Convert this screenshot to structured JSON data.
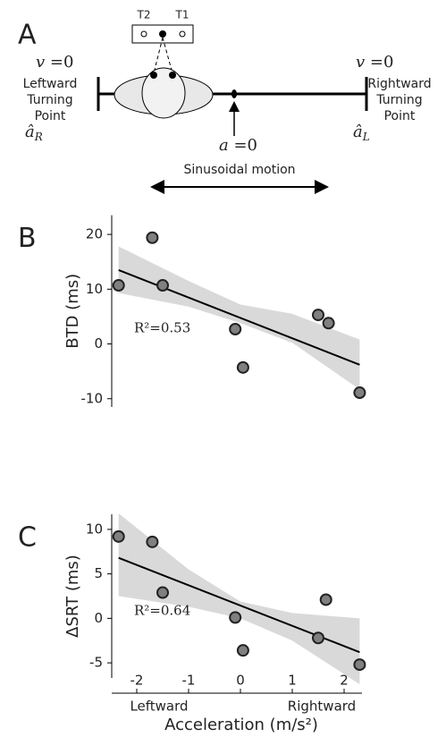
{
  "panel_a": {
    "letter": "A",
    "sensor_left": "T2",
    "sensor_right": "T1",
    "left_velocity": {
      "symbol": "v",
      "rest": " =0"
    },
    "right_velocity": {
      "symbol": "v",
      "rest": " =0"
    },
    "left_label": [
      "Leftward",
      "Turning",
      "Point"
    ],
    "right_label": [
      "Rightward",
      "Turning",
      "Point"
    ],
    "left_accel": {
      "symbol": "â",
      "sub": "R"
    },
    "right_accel": {
      "symbol": "â",
      "sub": "L"
    },
    "center_accel": {
      "symbol": "a",
      "rest": " =0"
    },
    "motion": "Sinusoidal motion"
  },
  "chart_data": [
    {
      "type": "scatter",
      "panel": "B",
      "ylabel": "BTD (ms)",
      "annotation": "R²=0.53",
      "color": "#808080",
      "band_color": "#d9d9d9",
      "x": [
        -2.35,
        -1.7,
        -1.5,
        -0.1,
        0.05,
        1.5,
        1.7,
        2.3
      ],
      "values": [
        10.7,
        19.4,
        10.7,
        2.7,
        -4.3,
        5.3,
        3.8,
        -8.9
      ],
      "fit": {
        "x": [
          -2.35,
          2.3
        ],
        "y": [
          13.5,
          -3.8
        ]
      },
      "ci_x": [
        -2.35,
        -1,
        0,
        1,
        2.3
      ],
      "ci_upper": [
        17.8,
        11.5,
        7.2,
        5.5,
        0.8
      ],
      "ci_lower": [
        9.3,
        6.8,
        3.8,
        0.2,
        -8.3
      ],
      "xlim": [
        -2.5,
        2.5
      ],
      "ylim": [
        -12,
        24
      ],
      "yticks": [
        20,
        10,
        0,
        -10
      ]
    },
    {
      "type": "scatter",
      "panel": "C",
      "ylabel": "ΔSRT (ms)",
      "annotation": "R²=0.64",
      "color": "#808080",
      "band_color": "#d9d9d9",
      "xlabel": "Acceleration (m/s²)",
      "x_left_label": "Leftward",
      "x_right_label": "Rightward",
      "x": [
        -2.35,
        -1.7,
        -1.5,
        -0.1,
        0.05,
        1.5,
        1.65,
        2.3
      ],
      "values": [
        9.2,
        8.6,
        2.9,
        0.1,
        -3.6,
        -2.2,
        2.1,
        -5.2
      ],
      "fit": {
        "x": [
          -2.35,
          2.3
        ],
        "y": [
          6.8,
          -3.8
        ]
      },
      "ci_x": [
        -2.35,
        -1,
        0,
        1,
        2.3
      ],
      "ci_upper": [
        11.8,
        5.5,
        1.9,
        0.6,
        0
      ],
      "ci_lower": [
        2.5,
        1.3,
        0,
        -2.5,
        -7.4
      ],
      "xlim": [
        -2.5,
        2.5
      ],
      "ylim": [
        -7,
        12
      ],
      "yticks": [
        10,
        5,
        0,
        -5
      ],
      "xticks": [
        -2,
        -1,
        0,
        1,
        2
      ]
    }
  ]
}
